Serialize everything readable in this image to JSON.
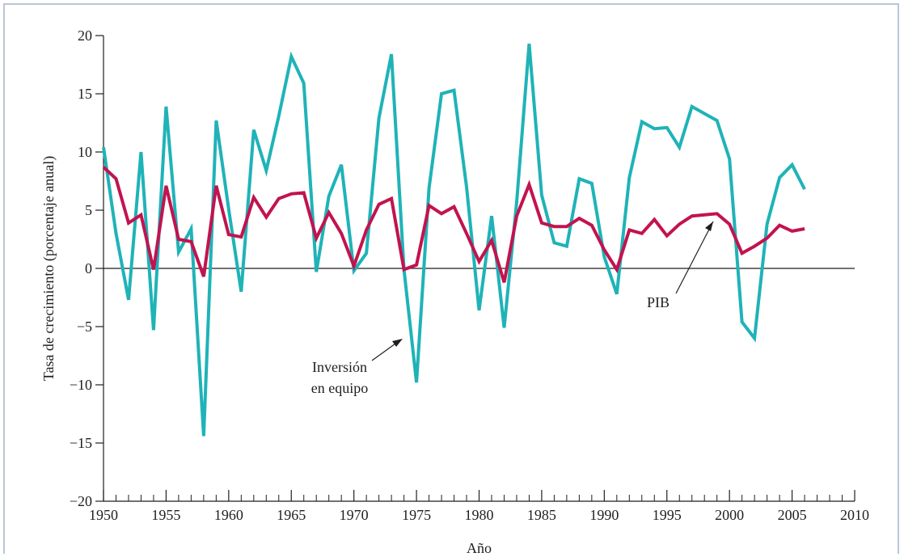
{
  "chart_data": {
    "type": "line",
    "title": "",
    "xlabel": "Año",
    "ylabel": "Tasa de crecimiento (porcentaje anual)",
    "xlim": [
      1950,
      2010
    ],
    "ylim": [
      -20,
      20
    ],
    "x_ticks": [
      1950,
      1955,
      1960,
      1965,
      1970,
      1975,
      1980,
      1985,
      1990,
      1995,
      2000,
      2005,
      2010
    ],
    "x_tick_labels": [
      "1950",
      "1955",
      "1960",
      "1965",
      "1970",
      "1975",
      "1980",
      "1985",
      "1990",
      "1995",
      "2000",
      "2005",
      "2010"
    ],
    "y_ticks": [
      -20,
      -15,
      -10,
      -5,
      0,
      5,
      10,
      15,
      20
    ],
    "y_tick_labels": [
      "−20",
      "−15",
      "−10",
      "−5",
      "0",
      "5",
      "10",
      "15",
      "20"
    ],
    "grid": false,
    "zero_line": true,
    "x": [
      1950,
      1951,
      1952,
      1953,
      1954,
      1955,
      1956,
      1957,
      1958,
      1959,
      1960,
      1961,
      1962,
      1963,
      1964,
      1965,
      1966,
      1967,
      1968,
      1969,
      1970,
      1971,
      1972,
      1973,
      1974,
      1975,
      1976,
      1977,
      1978,
      1979,
      1980,
      1981,
      1982,
      1983,
      1984,
      1985,
      1986,
      1987,
      1988,
      1989,
      1990,
      1991,
      1992,
      1993,
      1994,
      1995,
      1996,
      1997,
      1998,
      1999,
      2000,
      2001,
      2002,
      2003,
      2004,
      2005,
      2006
    ],
    "series": [
      {
        "name": "PIB",
        "color": "#c2134f",
        "values": [
          8.7,
          7.7,
          3.9,
          4.6,
          -0.1,
          7.1,
          2.5,
          2.3,
          -0.7,
          7.1,
          2.9,
          2.7,
          6.1,
          4.4,
          6.0,
          6.4,
          6.5,
          2.6,
          4.8,
          3.0,
          0.2,
          3.3,
          5.5,
          6.0,
          -0.1,
          0.3,
          5.4,
          4.7,
          5.3,
          3.0,
          0.6,
          2.4,
          -1.2,
          4.5,
          7.2,
          3.9,
          3.6,
          3.6,
          4.3,
          3.7,
          1.6,
          -0.1,
          3.3,
          3.0,
          4.2,
          2.8,
          3.8,
          4.5,
          4.6,
          4.7,
          3.8,
          1.3,
          1.9,
          2.6,
          3.7,
          3.2,
          3.4
        ]
      },
      {
        "name": "Inversión en equipo",
        "color": "#1fb3b8",
        "values": [
          10.4,
          3.0,
          -2.7,
          10.0,
          -5.3,
          13.9,
          1.4,
          3.4,
          -14.4,
          12.7,
          5.1,
          -2.0,
          11.9,
          8.4,
          13.1,
          18.2,
          15.9,
          -0.3,
          6.2,
          8.9,
          -0.2,
          1.3,
          12.9,
          18.4,
          -0.1,
          -9.8,
          6.9,
          15.0,
          15.3,
          7.0,
          -3.6,
          4.5,
          -5.1,
          5.7,
          19.3,
          6.3,
          2.2,
          1.9,
          7.7,
          7.3,
          1.0,
          -2.2,
          7.8,
          12.6,
          12.0,
          12.1,
          10.4,
          13.9,
          13.3,
          12.7,
          9.4,
          -4.6,
          -6.0,
          3.8,
          7.8,
          8.9,
          6.8
        ]
      }
    ],
    "annotations": [
      {
        "text": "PIB",
        "points_to_series": "PIB"
      },
      {
        "text_lines": [
          "Inversión",
          "en equipo"
        ],
        "points_to_series": "Inversión en equipo"
      }
    ]
  }
}
